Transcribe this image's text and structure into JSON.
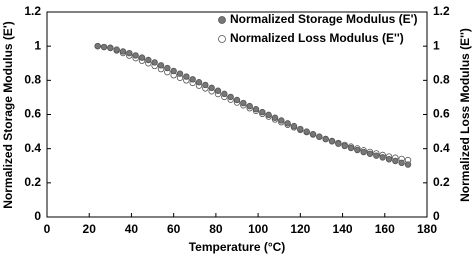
{
  "chart_data": {
    "type": "scatter",
    "xlabel": "Temperature (°C)",
    "ylabel": "Normalized Storage Modulus (E')",
    "y2label": "Normalized Loss Modulus (E'')",
    "x": [
      24,
      27,
      30,
      33,
      36,
      39,
      42,
      45,
      48,
      51,
      54,
      57,
      60,
      63,
      66,
      69,
      72,
      75,
      78,
      81,
      84,
      87,
      90,
      93,
      96,
      99,
      102,
      105,
      108,
      111,
      114,
      117,
      120,
      123,
      126,
      129,
      132,
      135,
      138,
      141,
      144,
      147,
      150,
      153,
      156,
      159,
      162,
      165,
      168,
      171
    ],
    "series": [
      {
        "name": "Normalized Storage Modulus (E')",
        "color": "#777777",
        "axis": "y",
        "values": [
          1.0,
          0.995,
          0.99,
          0.98,
          0.969,
          0.959,
          0.946,
          0.933,
          0.919,
          0.905,
          0.888,
          0.872,
          0.855,
          0.839,
          0.822,
          0.806,
          0.789,
          0.773,
          0.756,
          0.739,
          0.721,
          0.703,
          0.685,
          0.667,
          0.649,
          0.631,
          0.614,
          0.598,
          0.581,
          0.565,
          0.548,
          0.532,
          0.515,
          0.5,
          0.485,
          0.47,
          0.456,
          0.443,
          0.429,
          0.416,
          0.404,
          0.392,
          0.38,
          0.37,
          0.359,
          0.349,
          0.338,
          0.328,
          0.317,
          0.307
        ]
      },
      {
        "name": "Normalized Loss Modulus (E'')",
        "color": "#ffffff",
        "axis": "y2",
        "values": [
          1.0,
          0.995,
          0.99,
          0.975,
          0.96,
          0.945,
          0.93,
          0.915,
          0.9,
          0.884,
          0.866,
          0.848,
          0.83,
          0.815,
          0.8,
          0.785,
          0.769,
          0.753,
          0.736,
          0.72,
          0.703,
          0.687,
          0.67,
          0.654,
          0.637,
          0.621,
          0.604,
          0.588,
          0.571,
          0.555,
          0.54,
          0.525,
          0.51,
          0.497,
          0.483,
          0.47,
          0.457,
          0.445,
          0.433,
          0.422,
          0.412,
          0.401,
          0.39,
          0.381,
          0.372,
          0.363,
          0.354,
          0.347,
          0.34,
          0.333
        ]
      }
    ],
    "xlim": [
      0,
      180
    ],
    "xticks": [
      0,
      20,
      40,
      60,
      80,
      100,
      120,
      140,
      160,
      180
    ],
    "ylim": [
      0,
      1.2
    ],
    "yticks": [
      0,
      0.2,
      0.4,
      0.6,
      0.8,
      1,
      1.2
    ],
    "y2lim": [
      0,
      1.2
    ],
    "y2ticks": [
      0,
      0.2,
      0.4,
      0.6,
      0.8,
      1,
      1.2
    ],
    "grid": false,
    "legend": "upper right"
  }
}
